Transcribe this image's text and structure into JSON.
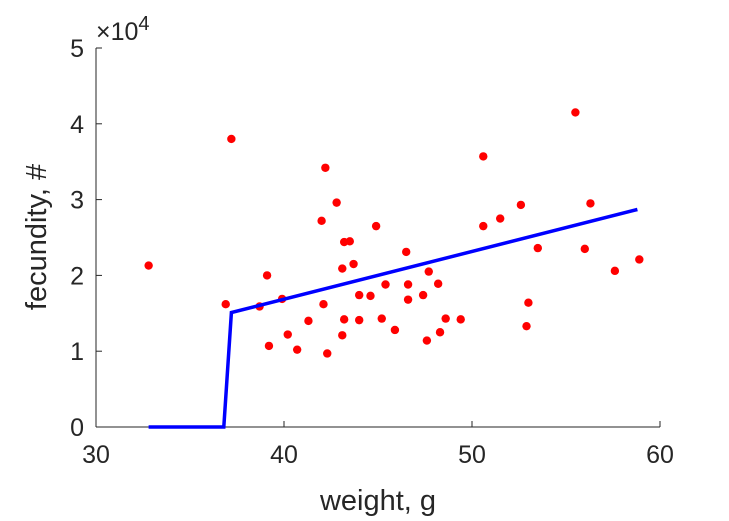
{
  "chart_data": {
    "type": "scatter",
    "title": "",
    "xlabel": "weight, g",
    "ylabel": "fecundity, #",
    "xlim": [
      30,
      60
    ],
    "ylim": [
      0,
      50000
    ],
    "x_ticks": [
      30,
      40,
      50,
      60
    ],
    "y_ticks": [
      0,
      1,
      2,
      3,
      4,
      5
    ],
    "y_multiplier": "×10",
    "y_multiplier_exponent": "4",
    "grid": false,
    "legend": "none",
    "colors": {
      "points": "#ff0000",
      "line": "#0000ff",
      "axis": "#262626"
    },
    "scatter": [
      [
        32.8,
        21300
      ],
      [
        36.9,
        16200
      ],
      [
        37.2,
        38000
      ],
      [
        38.7,
        15900
      ],
      [
        39.1,
        20000
      ],
      [
        39.2,
        10700
      ],
      [
        39.9,
        16900
      ],
      [
        40.2,
        12200
      ],
      [
        40.7,
        10200
      ],
      [
        41.3,
        14000
      ],
      [
        42.0,
        27200
      ],
      [
        42.1,
        16200
      ],
      [
        42.2,
        34200
      ],
      [
        42.3,
        9700
      ],
      [
        42.8,
        29600
      ],
      [
        43.1,
        12100
      ],
      [
        43.1,
        20900
      ],
      [
        43.2,
        24400
      ],
      [
        43.2,
        14200
      ],
      [
        43.5,
        24500
      ],
      [
        43.7,
        21500
      ],
      [
        44.0,
        14100
      ],
      [
        44.0,
        17400
      ],
      [
        44.6,
        17300
      ],
      [
        44.9,
        26500
      ],
      [
        45.2,
        14300
      ],
      [
        45.4,
        18800
      ],
      [
        45.9,
        12800
      ],
      [
        46.5,
        23100
      ],
      [
        46.6,
        16800
      ],
      [
        46.6,
        18800
      ],
      [
        47.4,
        17400
      ],
      [
        47.6,
        11400
      ],
      [
        47.7,
        20500
      ],
      [
        48.2,
        18900
      ],
      [
        48.3,
        12500
      ],
      [
        48.6,
        14300
      ],
      [
        49.4,
        14200
      ],
      [
        50.6,
        35700
      ],
      [
        50.6,
        26500
      ],
      [
        51.5,
        27500
      ],
      [
        52.6,
        29300
      ],
      [
        52.9,
        13300
      ],
      [
        53.0,
        16400
      ],
      [
        53.5,
        23600
      ],
      [
        55.5,
        41500
      ],
      [
        56.0,
        23500
      ],
      [
        56.3,
        29500
      ],
      [
        57.6,
        20600
      ],
      [
        58.9,
        22100
      ]
    ],
    "fit_line": [
      [
        32.8,
        0
      ],
      [
        36.8,
        0
      ],
      [
        37.2,
        15100
      ],
      [
        58.8,
        28700
      ]
    ]
  }
}
